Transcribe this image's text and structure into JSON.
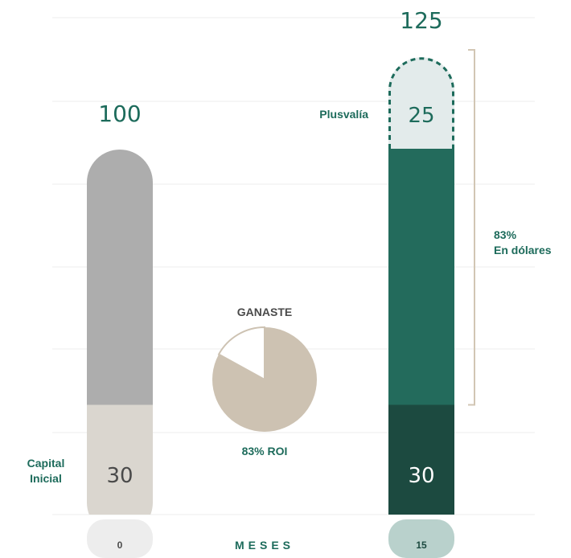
{
  "chart_data": {
    "type": "bar",
    "xlabel": "MESES",
    "categories": [
      "0",
      "15"
    ],
    "bars": [
      {
        "category": "0",
        "total": 100,
        "total_label": "100",
        "segments": [
          {
            "name": "Capital Inicial",
            "label": "30",
            "value": 30,
            "color": "#dad6cf"
          },
          {
            "name": "",
            "label": "",
            "value": 70,
            "color": "#adadad"
          }
        ]
      },
      {
        "category": "15",
        "total": 125,
        "total_label": "125",
        "segments": [
          {
            "name": "Capital Inicial",
            "label": "30",
            "value": 30,
            "color": "#1c4a40"
          },
          {
            "name": "",
            "label": "",
            "value": 70,
            "color": "#236b5c"
          },
          {
            "name": "Plusvalía",
            "label": "25",
            "value": 25,
            "color": "#e3ebeb",
            "dashed": true
          }
        ]
      }
    ],
    "annotations": {
      "capital_line1": "Capital",
      "capital_line2": "Inicial",
      "plusvalia": "Plusvalía",
      "bracket_pct": "83%",
      "bracket_text": "En dólares"
    },
    "pie": {
      "title": "GANASTE",
      "label": "83% ROI",
      "fraction": 0.83,
      "color": "#cdc2b2",
      "remainder_color": "#ffffff"
    },
    "ylim": [
      0,
      125
    ],
    "grid": true,
    "colors": {
      "accent_green": "#1d6b5b",
      "text_gray": "#4a4a4a",
      "gridline": "#ececec",
      "axis_pill_gray": "#ededed",
      "axis_pill_teal": "#b9d1cc",
      "bracket": "#d2c6b4"
    }
  }
}
